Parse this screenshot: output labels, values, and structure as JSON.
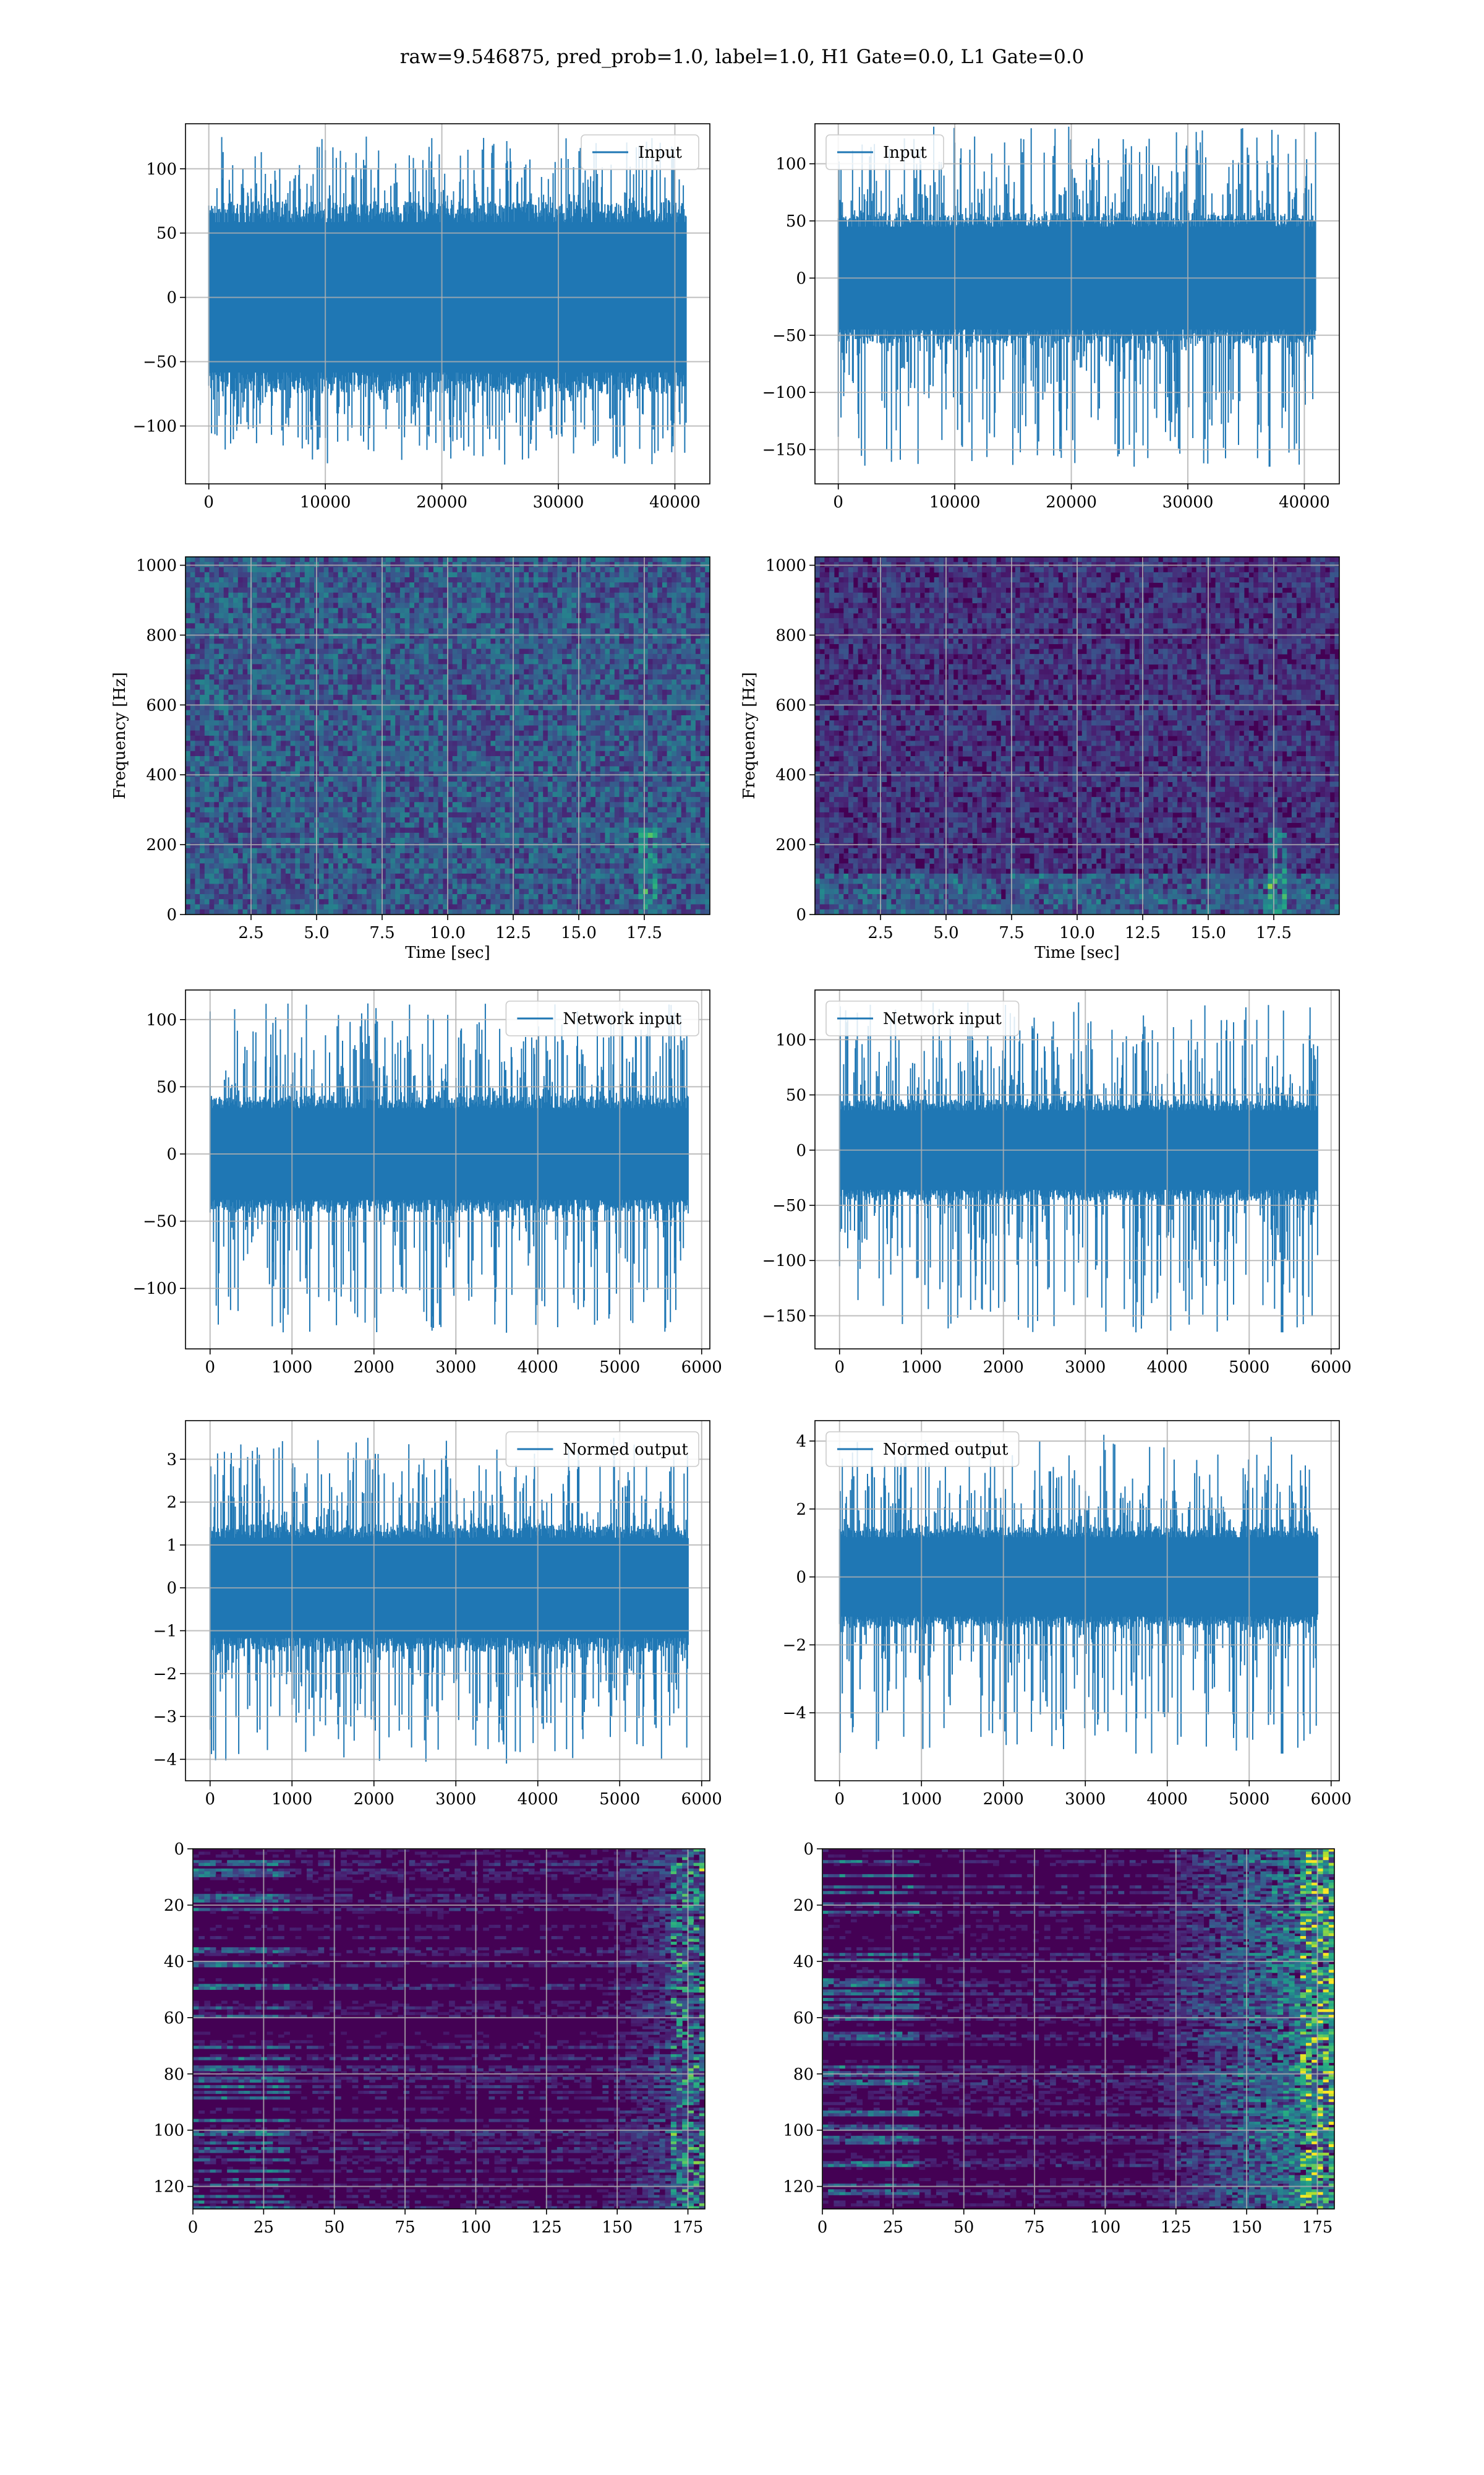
{
  "figure": {
    "suptitle": "raw=9.546875, pred_prob=1.0, label=1.0, H1 Gate=0.0, L1 Gate=0.0"
  },
  "colors": {
    "line": "#1f77b4",
    "grid": "#b0b0b0",
    "viridis_low": "#440154",
    "viridis_mid": "#21918c",
    "viridis_high": "#fde725"
  },
  "chart_data": [
    {
      "type": "line",
      "legend": "Input",
      "legend_loc": "upper right",
      "xlim": [
        -2000,
        43000
      ],
      "ylim": [
        -145,
        135
      ],
      "xticks": [
        0,
        10000,
        20000,
        30000,
        40000
      ],
      "xticklabels": [
        "0",
        "10000",
        "20000",
        "30000",
        "40000"
      ],
      "yticks": [
        -100,
        -50,
        0,
        50,
        100
      ],
      "yticklabels": [
        "−100",
        "−50",
        "0",
        "50",
        "100"
      ],
      "signal": {
        "n_samples": 40960,
        "x_max": 40960,
        "core_amplitude": 65,
        "peak_min": -130,
        "peak_max": 125
      },
      "grid": true
    },
    {
      "type": "line",
      "legend": "Input",
      "legend_loc": "upper left",
      "xlim": [
        -2000,
        43000
      ],
      "ylim": [
        -180,
        135
      ],
      "xticks": [
        0,
        10000,
        20000,
        30000,
        40000
      ],
      "xticklabels": [
        "0",
        "10000",
        "20000",
        "30000",
        "40000"
      ],
      "yticks": [
        -150,
        -100,
        -50,
        0,
        50,
        100
      ],
      "yticklabels": [
        "−150",
        "−100",
        "−50",
        "0",
        "50",
        "100"
      ],
      "signal": {
        "n_samples": 40960,
        "x_max": 40960,
        "core_amplitude": 50,
        "peak_min": -165,
        "peak_max": 133,
        "glitch_x": 37000
      },
      "grid": true
    },
    {
      "type": "heatmap",
      "colormap": "viridis",
      "xlabel": "Time [sec]",
      "ylabel": "Frequency [Hz]",
      "xlim": [
        0,
        20
      ],
      "ylim": [
        0,
        1024
      ],
      "xticks": [
        2.5,
        5.0,
        7.5,
        10.0,
        12.5,
        15.0,
        17.5
      ],
      "xticklabels": [
        "2.5",
        "5.0",
        "7.5",
        "10.0",
        "12.5",
        "15.0",
        "17.5"
      ],
      "yticks": [
        0,
        200,
        400,
        600,
        800,
        1000
      ],
      "yticklabels": [
        "0",
        "200",
        "400",
        "600",
        "800",
        "1000"
      ],
      "grid": true
    },
    {
      "type": "heatmap",
      "colormap": "viridis",
      "xlabel": "Time [sec]",
      "ylabel": "Frequency [Hz]",
      "xlim": [
        0,
        20
      ],
      "ylim": [
        0,
        1024
      ],
      "xticks": [
        2.5,
        5.0,
        7.5,
        10.0,
        12.5,
        15.0,
        17.5
      ],
      "xticklabels": [
        "2.5",
        "5.0",
        "7.5",
        "10.0",
        "12.5",
        "15.0",
        "17.5"
      ],
      "yticks": [
        0,
        200,
        400,
        600,
        800,
        1000
      ],
      "yticklabels": [
        "0",
        "200",
        "400",
        "600",
        "800",
        "1000"
      ],
      "grid": true
    },
    {
      "type": "line",
      "legend": "Network input",
      "legend_loc": "upper right",
      "xlim": [
        -300,
        6100
      ],
      "ylim": [
        -145,
        122
      ],
      "xticks": [
        0,
        1000,
        2000,
        3000,
        4000,
        5000,
        6000
      ],
      "xticklabels": [
        "0",
        "1000",
        "2000",
        "3000",
        "4000",
        "5000",
        "6000"
      ],
      "yticks": [
        -100,
        -50,
        0,
        50,
        100
      ],
      "yticklabels": [
        "−100",
        "−50",
        "0",
        "50",
        "100"
      ],
      "signal": {
        "n_samples": 5835,
        "x_max": 5835,
        "core_amplitude": 38,
        "peak_min": -133,
        "peak_max": 112
      },
      "grid": true
    },
    {
      "type": "line",
      "legend": "Network input",
      "legend_loc": "upper left",
      "xlim": [
        -300,
        6100
      ],
      "ylim": [
        -180,
        145
      ],
      "xticks": [
        0,
        1000,
        2000,
        3000,
        4000,
        5000,
        6000
      ],
      "xticklabels": [
        "0",
        "1000",
        "2000",
        "3000",
        "4000",
        "5000",
        "6000"
      ],
      "yticks": [
        -150,
        -100,
        -50,
        0,
        50,
        100
      ],
      "yticklabels": [
        "−150",
        "−100",
        "−50",
        "0",
        "50",
        "100"
      ],
      "signal": {
        "n_samples": 5835,
        "x_max": 5835,
        "core_amplitude": 40,
        "peak_min": -165,
        "peak_max": 135,
        "glitch_x": 5400
      },
      "grid": true
    },
    {
      "type": "line",
      "legend": "Normed output",
      "legend_loc": "upper right",
      "xlim": [
        -300,
        6100
      ],
      "ylim": [
        -4.5,
        3.9
      ],
      "xticks": [
        0,
        1000,
        2000,
        3000,
        4000,
        5000,
        6000
      ],
      "xticklabels": [
        "0",
        "1000",
        "2000",
        "3000",
        "4000",
        "5000",
        "6000"
      ],
      "yticks": [
        -4,
        -3,
        -2,
        -1,
        0,
        1,
        2,
        3
      ],
      "yticklabels": [
        "−4",
        "−3",
        "−2",
        "−1",
        "0",
        "1",
        "2",
        "3"
      ],
      "signal": {
        "n_samples": 5835,
        "x_max": 5835,
        "core_amplitude": 1.3,
        "peak_min": -4.1,
        "peak_max": 3.5
      },
      "grid": true
    },
    {
      "type": "line",
      "legend": "Normed output",
      "legend_loc": "upper left",
      "xlim": [
        -300,
        6100
      ],
      "ylim": [
        -6,
        4.6
      ],
      "xticks": [
        0,
        1000,
        2000,
        3000,
        4000,
        5000,
        6000
      ],
      "xticklabels": [
        "0",
        "1000",
        "2000",
        "3000",
        "4000",
        "5000",
        "6000"
      ],
      "yticks": [
        -4,
        -2,
        0,
        2,
        4
      ],
      "yticklabels": [
        "−4",
        "−2",
        "0",
        "2",
        "4"
      ],
      "signal": {
        "n_samples": 5835,
        "x_max": 5835,
        "core_amplitude": 1.3,
        "peak_min": -5.2,
        "peak_max": 4.2,
        "glitch_x": 5400
      },
      "grid": true
    },
    {
      "type": "heatmap",
      "colormap": "viridis",
      "xlim": [
        0,
        181
      ],
      "ylim": [
        128,
        0
      ],
      "xticks": [
        0,
        25,
        50,
        75,
        100,
        125,
        150,
        175
      ],
      "xticklabels": [
        "0",
        "25",
        "50",
        "75",
        "100",
        "125",
        "150",
        "175"
      ],
      "yticks": [
        0,
        20,
        40,
        60,
        80,
        100,
        120
      ],
      "yticklabels": [
        "0",
        "20",
        "40",
        "60",
        "80",
        "100",
        "120"
      ],
      "grid": true
    },
    {
      "type": "heatmap",
      "colormap": "viridis",
      "xlim": [
        0,
        181
      ],
      "ylim": [
        128,
        0
      ],
      "xticks": [
        0,
        25,
        50,
        75,
        100,
        125,
        150,
        175
      ],
      "xticklabels": [
        "0",
        "25",
        "50",
        "75",
        "100",
        "125",
        "150",
        "175"
      ],
      "yticks": [
        0,
        20,
        40,
        60,
        80,
        100,
        120
      ],
      "yticklabels": [
        "0",
        "20",
        "40",
        "60",
        "80",
        "100",
        "120"
      ],
      "grid": true
    }
  ]
}
